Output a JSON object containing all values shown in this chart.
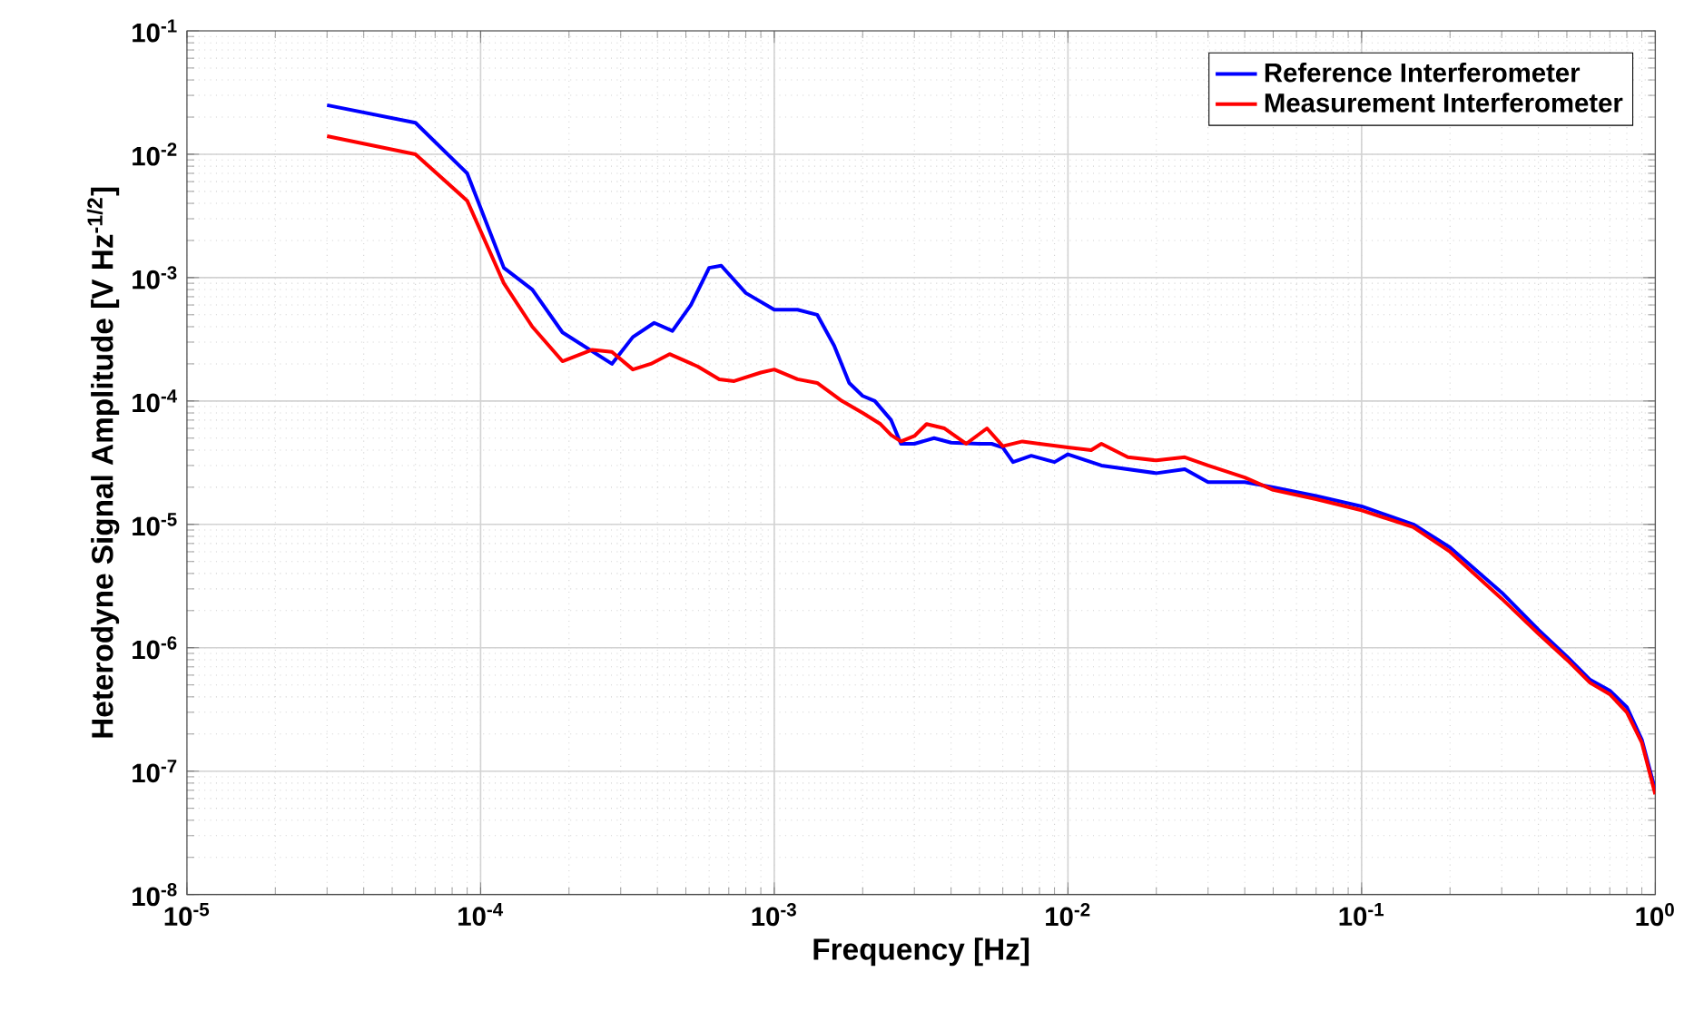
{
  "chart_data": {
    "type": "line",
    "xlabel": "Frequency  [Hz]",
    "ylabel": "Heterodyne Signal Amplitude [V Hz$^{-1/2}$]",
    "log": "xy",
    "grid": true,
    "legend": "top right",
    "line_style": "solid",
    "marker": "none",
    "xlim": [
      1e-05,
      1
    ],
    "ylim": [
      1e-08,
      0.1
    ],
    "xticks": [
      {
        "value": 1e-05,
        "label": "10$^{-5}$"
      },
      {
        "value": 0.0001,
        "label": "10$^{-4}$"
      },
      {
        "value": 0.001,
        "label": "10$^{-3}$"
      },
      {
        "value": 0.01,
        "label": "10$^{-2}$"
      },
      {
        "value": 0.1,
        "label": "10$^{-1}$"
      },
      {
        "value": 1,
        "label": "10$^{0}$"
      }
    ],
    "yticks": [
      {
        "value": 1e-08,
        "label": "10$^{-8}$"
      },
      {
        "value": 1e-07,
        "label": "10$^{-7}$"
      },
      {
        "value": 1e-06,
        "label": "10$^{-6}$"
      },
      {
        "value": 1e-05,
        "label": "10$^{-5}$"
      },
      {
        "value": 0.0001,
        "label": "10$^{-4}$"
      },
      {
        "value": 0.001,
        "label": "10$^{-3}$"
      },
      {
        "value": 0.01,
        "label": "10$^{-2}$"
      },
      {
        "value": 0.1,
        "label": "10$^{-1}$"
      }
    ],
    "series": [
      {
        "name": "Reference Interferometer",
        "color": "#0000ff",
        "x": [
          3e-05,
          6e-05,
          9e-05,
          0.00012,
          0.00015,
          0.00019,
          0.00028,
          0.00033,
          0.00039,
          0.00045,
          0.00052,
          0.0006,
          0.00066,
          0.0008,
          0.001,
          0.0012,
          0.0014,
          0.0016,
          0.0018,
          0.002,
          0.0022,
          0.0025,
          0.0027,
          0.003,
          0.0035,
          0.004,
          0.005,
          0.0055,
          0.006,
          0.0065,
          0.0075,
          0.009,
          0.01,
          0.013,
          0.02,
          0.025,
          0.03,
          0.04,
          0.05,
          0.07,
          0.1,
          0.15,
          0.2,
          0.3,
          0.4,
          0.5,
          0.6,
          0.7,
          0.8,
          0.9,
          1.0
        ],
        "values": [
          0.025,
          0.018,
          0.007,
          0.0012,
          0.0008,
          0.00036,
          0.0002,
          0.00033,
          0.00043,
          0.00037,
          0.0006,
          0.0012,
          0.00125,
          0.00075,
          0.00055,
          0.00055,
          0.0005,
          0.00028,
          0.00014,
          0.00011,
          0.0001,
          7e-05,
          4.5e-05,
          4.5e-05,
          5e-05,
          4.6e-05,
          4.5e-05,
          4.5e-05,
          4.2e-05,
          3.2e-05,
          3.6e-05,
          3.2e-05,
          3.7e-05,
          3e-05,
          2.6e-05,
          2.8e-05,
          2.2e-05,
          2.2e-05,
          2e-05,
          1.7e-05,
          1.4e-05,
          1e-05,
          6.5e-06,
          2.8e-06,
          1.4e-06,
          8.5e-07,
          5.5e-07,
          4.5e-07,
          3.3e-07,
          1.8e-07,
          7e-08
        ]
      },
      {
        "name": "Measurement Interferometer",
        "color": "#ff0000",
        "x": [
          3e-05,
          6e-05,
          9e-05,
          0.00012,
          0.00015,
          0.00019,
          0.00024,
          0.00028,
          0.00033,
          0.00038,
          0.00044,
          0.00055,
          0.00065,
          0.00073,
          0.0009,
          0.001,
          0.0012,
          0.0014,
          0.0017,
          0.002,
          0.0023,
          0.0025,
          0.0027,
          0.003,
          0.0033,
          0.0038,
          0.0045,
          0.0053,
          0.006,
          0.007,
          0.008,
          0.01,
          0.012,
          0.013,
          0.016,
          0.02,
          0.025,
          0.03,
          0.04,
          0.05,
          0.07,
          0.1,
          0.15,
          0.2,
          0.3,
          0.4,
          0.5,
          0.6,
          0.7,
          0.8,
          0.9,
          1.0
        ],
        "values": [
          0.014,
          0.01,
          0.0042,
          0.0009,
          0.0004,
          0.00021,
          0.00026,
          0.00025,
          0.00018,
          0.0002,
          0.00024,
          0.00019,
          0.00015,
          0.000145,
          0.00017,
          0.00018,
          0.00015,
          0.00014,
          0.0001,
          8e-05,
          6.5e-05,
          5.3e-05,
          4.7e-05,
          5.2e-05,
          6.5e-05,
          6e-05,
          4.5e-05,
          6e-05,
          4.3e-05,
          4.7e-05,
          4.5e-05,
          4.2e-05,
          4e-05,
          4.5e-05,
          3.5e-05,
          3.3e-05,
          3.5e-05,
          3e-05,
          2.4e-05,
          1.9e-05,
          1.6e-05,
          1.3e-05,
          9.5e-06,
          6e-06,
          2.5e-06,
          1.3e-06,
          8e-07,
          5.2e-07,
          4.2e-07,
          3e-07,
          1.7e-07,
          6.5e-08
        ]
      }
    ]
  }
}
